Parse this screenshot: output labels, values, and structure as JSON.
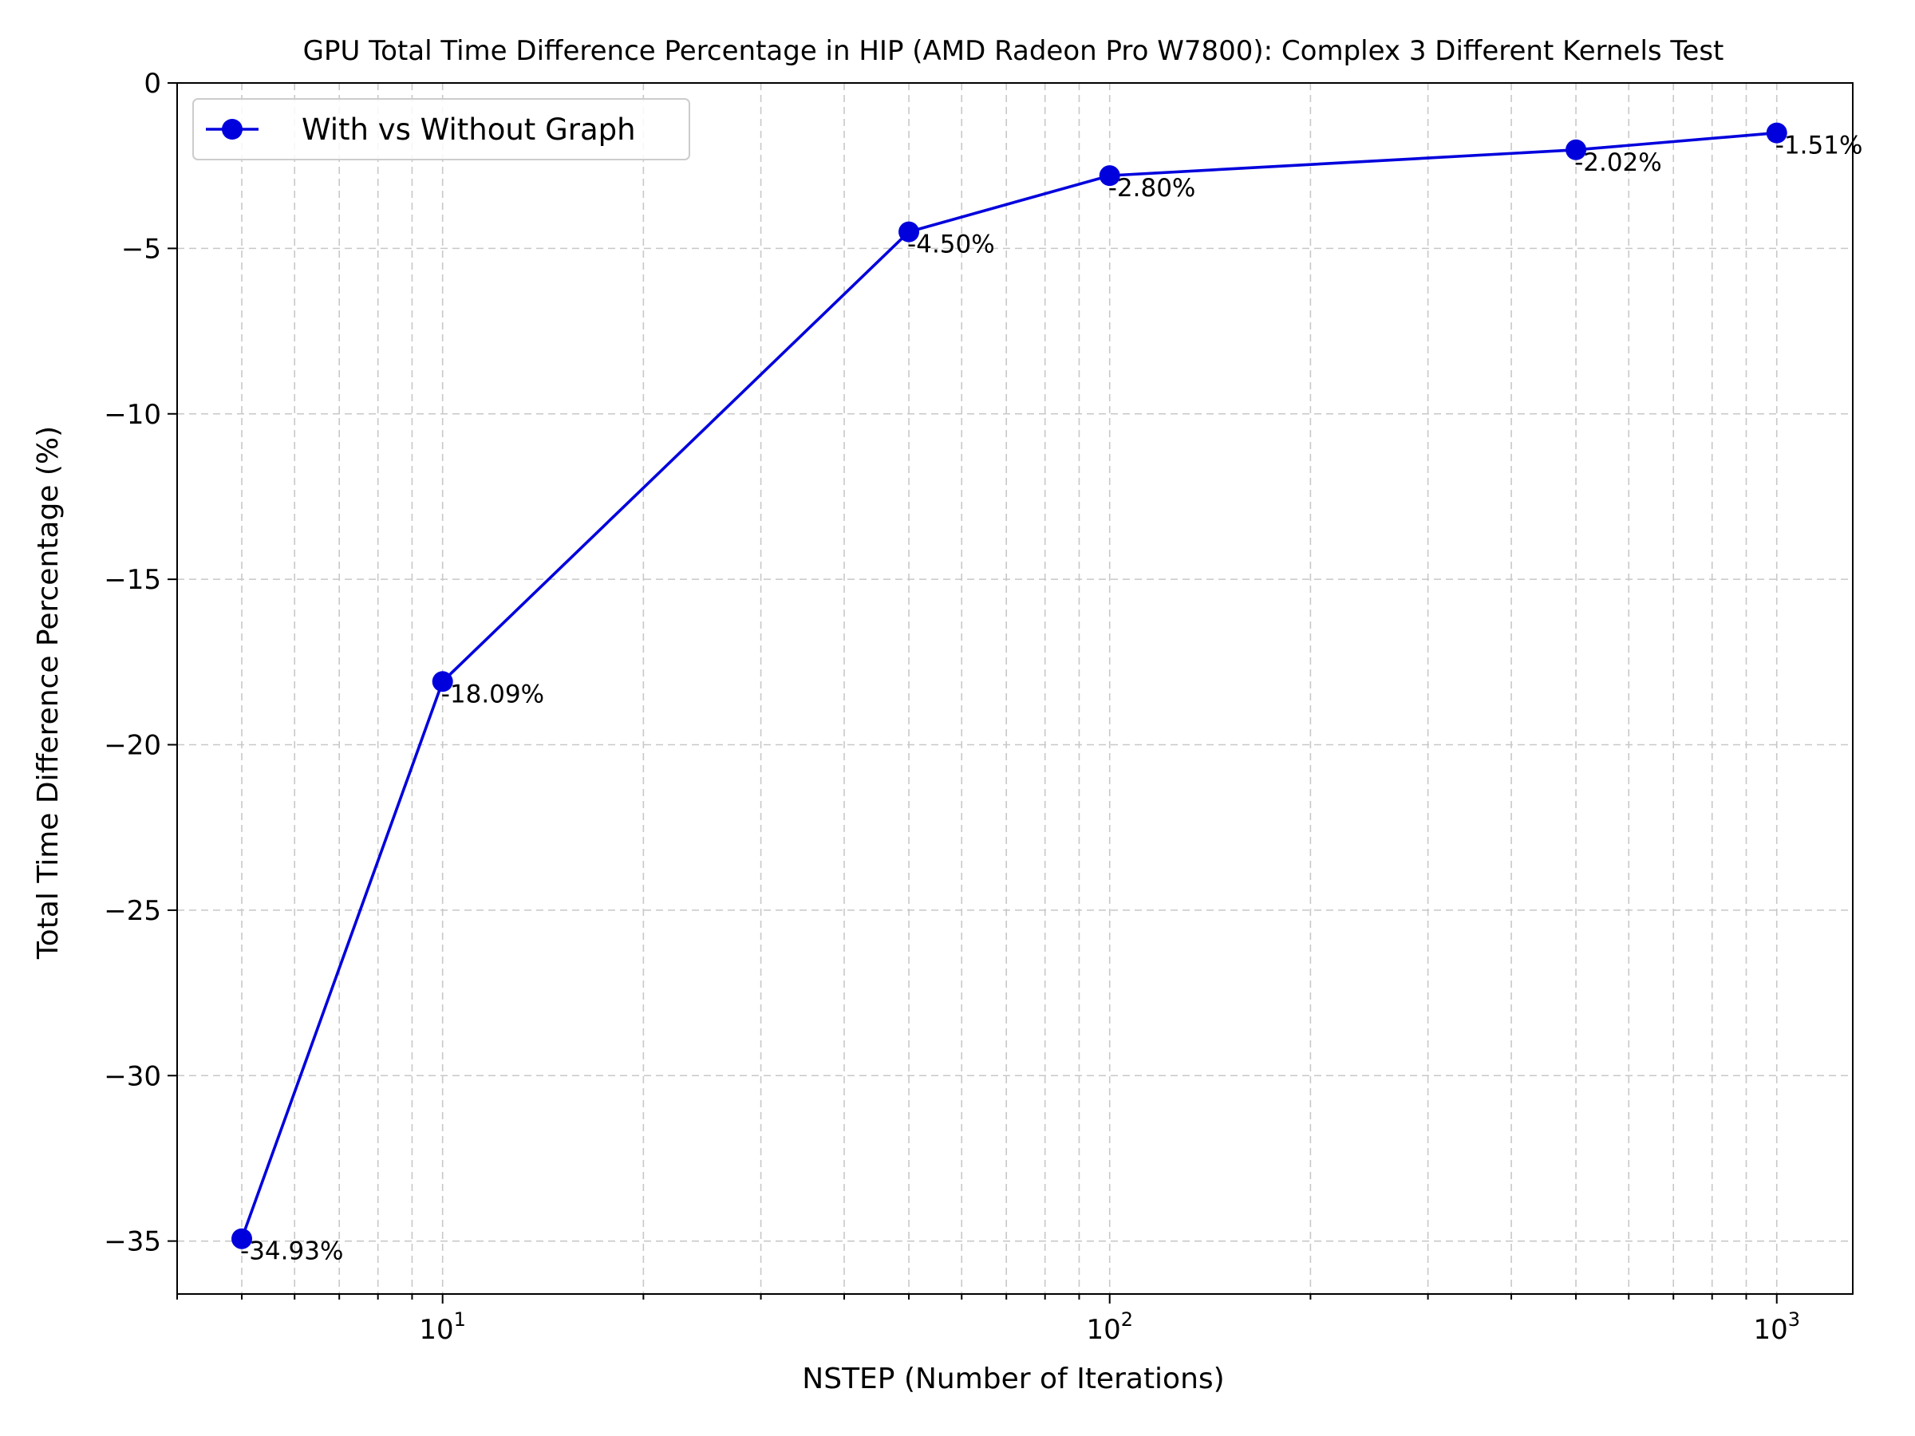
{
  "chart_data": {
    "type": "line",
    "title": "GPU Total Time Difference Percentage in HIP (AMD Radeon Pro W7800): Complex 3 Different Kernels Test",
    "xlabel": "NSTEP (Number of Iterations)",
    "ylabel": "Total Time Difference Percentage (%)",
    "x_scale": "log",
    "xlim": [
      4,
      1300
    ],
    "ylim": [
      -36.6,
      0
    ],
    "x_ticks": [
      {
        "value": 10,
        "base": "10",
        "exp": "1"
      },
      {
        "value": 100,
        "base": "10",
        "exp": "2"
      },
      {
        "value": 1000,
        "base": "10",
        "exp": "3"
      }
    ],
    "y_ticks": [
      {
        "value": 0,
        "label": "0"
      },
      {
        "value": -5,
        "label": "−5"
      },
      {
        "value": -10,
        "label": "−10"
      },
      {
        "value": -15,
        "label": "−15"
      },
      {
        "value": -20,
        "label": "−20"
      },
      {
        "value": -25,
        "label": "−25"
      },
      {
        "value": -30,
        "label": "−30"
      },
      {
        "value": -35,
        "label": "−35"
      }
    ],
    "grid": true,
    "legend_position": "upper-left",
    "series": [
      {
        "name": "With vs Without Graph",
        "color": "#0000dd",
        "x": [
          5,
          10,
          50,
          100,
          500,
          1000
        ],
        "y": [
          -34.93,
          -18.09,
          -4.5,
          -2.8,
          -2.02,
          -1.51
        ],
        "labels": [
          "-34.93%",
          "-18.09%",
          "-4.50%",
          "-2.80%",
          "-2.02%",
          "-1.51%"
        ]
      }
    ]
  }
}
